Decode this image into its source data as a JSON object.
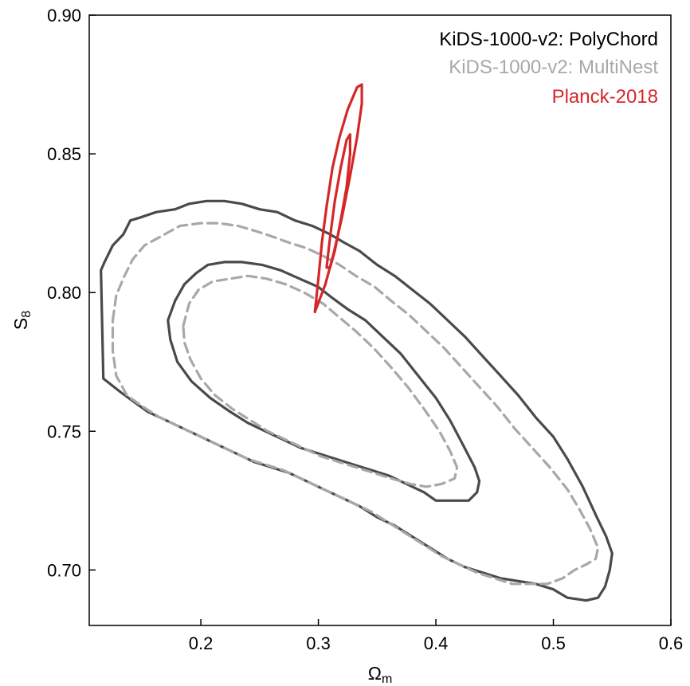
{
  "chart_data": {
    "type": "contour",
    "xlabel_main": "Ω",
    "xlabel_sub": "m",
    "ylabel_main": "S",
    "ylabel_sub": "8",
    "xlim": [
      0.105,
      0.6
    ],
    "ylim": [
      0.68,
      0.9
    ],
    "xticks": [
      0.2,
      0.3,
      0.4,
      0.5,
      0.6
    ],
    "yticks": [
      0.7,
      0.75,
      0.8,
      0.85,
      0.9
    ],
    "xtick_labels": [
      "0.2",
      "0.3",
      "0.4",
      "0.5",
      "0.6"
    ],
    "ytick_labels": [
      "0.70",
      "0.75",
      "0.80",
      "0.85",
      "0.90"
    ],
    "grid": false,
    "legend_placement": "top-right",
    "series": [
      {
        "name_prefix": "KiDS-1000-v2:",
        "name_suffix": "PolyChord",
        "color": "#4a4a4a",
        "legend_color": "#000000",
        "style": "solid",
        "contours": [
          [
            [
              0.115,
              0.808
            ],
            [
              0.118,
              0.811
            ],
            [
              0.125,
              0.817
            ],
            [
              0.134,
              0.821
            ],
            [
              0.14,
              0.826
            ],
            [
              0.148,
              0.827
            ],
            [
              0.162,
              0.829
            ],
            [
              0.178,
              0.83
            ],
            [
              0.19,
              0.832
            ],
            [
              0.205,
              0.833
            ],
            [
              0.22,
              0.833
            ],
            [
              0.235,
              0.832
            ],
            [
              0.25,
              0.83
            ],
            [
              0.265,
              0.829
            ],
            [
              0.28,
              0.826
            ],
            [
              0.295,
              0.824
            ],
            [
              0.31,
              0.821
            ],
            [
              0.322,
              0.818
            ],
            [
              0.335,
              0.815
            ],
            [
              0.35,
              0.81
            ],
            [
              0.365,
              0.806
            ],
            [
              0.38,
              0.801
            ],
            [
              0.395,
              0.796
            ],
            [
              0.41,
              0.79
            ],
            [
              0.425,
              0.784
            ],
            [
              0.44,
              0.777
            ],
            [
              0.455,
              0.77
            ],
            [
              0.47,
              0.763
            ],
            [
              0.485,
              0.755
            ],
            [
              0.5,
              0.748
            ],
            [
              0.512,
              0.74
            ],
            [
              0.525,
              0.73
            ],
            [
              0.537,
              0.719
            ],
            [
              0.545,
              0.712
            ],
            [
              0.55,
              0.706
            ],
            [
              0.548,
              0.7
            ],
            [
              0.544,
              0.694
            ],
            [
              0.538,
              0.69
            ],
            [
              0.528,
              0.689
            ],
            [
              0.512,
              0.69
            ],
            [
              0.5,
              0.693
            ],
            [
              0.485,
              0.695
            ],
            [
              0.47,
              0.696
            ],
            [
              0.455,
              0.697
            ],
            [
              0.44,
              0.699
            ],
            [
              0.425,
              0.701
            ],
            [
              0.41,
              0.704
            ],
            [
              0.395,
              0.708
            ],
            [
              0.38,
              0.712
            ],
            [
              0.365,
              0.716
            ],
            [
              0.35,
              0.719
            ],
            [
              0.335,
              0.723
            ],
            [
              0.32,
              0.726
            ],
            [
              0.305,
              0.729
            ],
            [
              0.29,
              0.732
            ],
            [
              0.275,
              0.735
            ],
            [
              0.26,
              0.737
            ],
            [
              0.245,
              0.739
            ],
            [
              0.23,
              0.742
            ],
            [
              0.215,
              0.745
            ],
            [
              0.2,
              0.748
            ],
            [
              0.185,
              0.751
            ],
            [
              0.17,
              0.754
            ],
            [
              0.155,
              0.757
            ],
            [
              0.145,
              0.76
            ],
            [
              0.132,
              0.764
            ],
            [
              0.117,
              0.769
            ]
          ],
          [
            [
              0.172,
              0.79
            ],
            [
              0.178,
              0.797
            ],
            [
              0.186,
              0.803
            ],
            [
              0.196,
              0.807
            ],
            [
              0.206,
              0.81
            ],
            [
              0.22,
              0.811
            ],
            [
              0.235,
              0.811
            ],
            [
              0.252,
              0.81
            ],
            [
              0.268,
              0.808
            ],
            [
              0.284,
              0.805
            ],
            [
              0.3,
              0.802
            ],
            [
              0.312,
              0.798
            ],
            [
              0.325,
              0.794
            ],
            [
              0.34,
              0.79
            ],
            [
              0.355,
              0.784
            ],
            [
              0.37,
              0.778
            ],
            [
              0.385,
              0.77
            ],
            [
              0.4,
              0.762
            ],
            [
              0.412,
              0.754
            ],
            [
              0.422,
              0.746
            ],
            [
              0.433,
              0.737
            ],
            [
              0.437,
              0.732
            ],
            [
              0.435,
              0.728
            ],
            [
              0.428,
              0.725
            ],
            [
              0.415,
              0.725
            ],
            [
              0.4,
              0.725
            ],
            [
              0.39,
              0.728
            ],
            [
              0.375,
              0.731
            ],
            [
              0.36,
              0.734
            ],
            [
              0.345,
              0.736
            ],
            [
              0.33,
              0.738
            ],
            [
              0.315,
              0.74
            ],
            [
              0.3,
              0.742
            ],
            [
              0.285,
              0.744
            ],
            [
              0.27,
              0.747
            ],
            [
              0.255,
              0.75
            ],
            [
              0.24,
              0.753
            ],
            [
              0.225,
              0.757
            ],
            [
              0.208,
              0.762
            ],
            [
              0.192,
              0.768
            ],
            [
              0.18,
              0.775
            ],
            [
              0.174,
              0.783
            ]
          ]
        ]
      },
      {
        "name_prefix": "KiDS-1000-v2:",
        "name_suffix": "MultiNest",
        "color": "#a8a8a8",
        "legend_color": "#a8a8a8",
        "style": "dashed",
        "contours": [
          [
            [
              0.125,
              0.79
            ],
            [
              0.128,
              0.799
            ],
            [
              0.135,
              0.806
            ],
            [
              0.142,
              0.812
            ],
            [
              0.152,
              0.817
            ],
            [
              0.165,
              0.82
            ],
            [
              0.182,
              0.824
            ],
            [
              0.2,
              0.825
            ],
            [
              0.215,
              0.825
            ],
            [
              0.232,
              0.824
            ],
            [
              0.248,
              0.822
            ],
            [
              0.262,
              0.82
            ],
            [
              0.275,
              0.818
            ],
            [
              0.29,
              0.816
            ],
            [
              0.305,
              0.813
            ],
            [
              0.318,
              0.81
            ],
            [
              0.332,
              0.806
            ],
            [
              0.348,
              0.802
            ],
            [
              0.362,
              0.797
            ],
            [
              0.377,
              0.792
            ],
            [
              0.392,
              0.786
            ],
            [
              0.407,
              0.78
            ],
            [
              0.422,
              0.773
            ],
            [
              0.437,
              0.766
            ],
            [
              0.452,
              0.759
            ],
            [
              0.467,
              0.751
            ],
            [
              0.482,
              0.744
            ],
            [
              0.497,
              0.737
            ],
            [
              0.512,
              0.729
            ],
            [
              0.522,
              0.722
            ],
            [
              0.531,
              0.715
            ],
            [
              0.538,
              0.708
            ],
            [
              0.536,
              0.704
            ],
            [
              0.528,
              0.702
            ],
            [
              0.518,
              0.7
            ],
            [
              0.508,
              0.697
            ],
            [
              0.495,
              0.695
            ],
            [
              0.48,
              0.695
            ],
            [
              0.465,
              0.695
            ],
            [
              0.45,
              0.697
            ],
            [
              0.435,
              0.699
            ],
            [
              0.42,
              0.702
            ],
            [
              0.405,
              0.705
            ],
            [
              0.39,
              0.709
            ],
            [
              0.375,
              0.713
            ],
            [
              0.36,
              0.717
            ],
            [
              0.345,
              0.721
            ],
            [
              0.33,
              0.724
            ],
            [
              0.315,
              0.727
            ],
            [
              0.3,
              0.73
            ],
            [
              0.285,
              0.733
            ],
            [
              0.27,
              0.736
            ],
            [
              0.255,
              0.738
            ],
            [
              0.24,
              0.74
            ],
            [
              0.225,
              0.743
            ],
            [
              0.21,
              0.746
            ],
            [
              0.195,
              0.749
            ],
            [
              0.18,
              0.752
            ],
            [
              0.165,
              0.755
            ],
            [
              0.15,
              0.759
            ],
            [
              0.137,
              0.763
            ],
            [
              0.128,
              0.77
            ],
            [
              0.125,
              0.779
            ]
          ],
          [
            [
              0.185,
              0.788
            ],
            [
              0.19,
              0.796
            ],
            [
              0.198,
              0.801
            ],
            [
              0.21,
              0.804
            ],
            [
              0.225,
              0.805
            ],
            [
              0.24,
              0.806
            ],
            [
              0.256,
              0.805
            ],
            [
              0.272,
              0.803
            ],
            [
              0.288,
              0.8
            ],
            [
              0.304,
              0.796
            ],
            [
              0.318,
              0.791
            ],
            [
              0.332,
              0.786
            ],
            [
              0.347,
              0.78
            ],
            [
              0.362,
              0.773
            ],
            [
              0.376,
              0.766
            ],
            [
              0.39,
              0.758
            ],
            [
              0.403,
              0.75
            ],
            [
              0.412,
              0.743
            ],
            [
              0.418,
              0.737
            ],
            [
              0.416,
              0.733
            ],
            [
              0.405,
              0.731
            ],
            [
              0.392,
              0.73
            ],
            [
              0.378,
              0.731
            ],
            [
              0.362,
              0.733
            ],
            [
              0.347,
              0.735
            ],
            [
              0.332,
              0.737
            ],
            [
              0.317,
              0.739
            ],
            [
              0.302,
              0.741
            ],
            [
              0.287,
              0.744
            ],
            [
              0.272,
              0.747
            ],
            [
              0.257,
              0.75
            ],
            [
              0.242,
              0.754
            ],
            [
              0.227,
              0.758
            ],
            [
              0.212,
              0.763
            ],
            [
              0.2,
              0.769
            ],
            [
              0.191,
              0.776
            ],
            [
              0.186,
              0.782
            ]
          ]
        ]
      },
      {
        "name_prefix": "",
        "name_suffix": "Planck-2018",
        "color": "#d62728",
        "legend_color": "#d62728",
        "style": "solid",
        "contours": [
          [
            [
              0.297,
              0.793
            ],
            [
              0.3,
              0.805
            ],
            [
              0.303,
              0.818
            ],
            [
              0.307,
              0.831
            ],
            [
              0.312,
              0.845
            ],
            [
              0.318,
              0.856
            ],
            [
              0.325,
              0.866
            ],
            [
              0.333,
              0.874
            ],
            [
              0.337,
              0.875
            ],
            [
              0.337,
              0.868
            ],
            [
              0.333,
              0.856
            ],
            [
              0.327,
              0.842
            ],
            [
              0.32,
              0.827
            ],
            [
              0.313,
              0.814
            ],
            [
              0.306,
              0.803
            ]
          ],
          [
            [
              0.307,
              0.809
            ],
            [
              0.31,
              0.82
            ],
            [
              0.314,
              0.833
            ],
            [
              0.319,
              0.845
            ],
            [
              0.324,
              0.855
            ],
            [
              0.327,
              0.857
            ],
            [
              0.327,
              0.85
            ],
            [
              0.324,
              0.838
            ],
            [
              0.319,
              0.826
            ],
            [
              0.314,
              0.815
            ],
            [
              0.31,
              0.809
            ]
          ]
        ]
      }
    ]
  }
}
